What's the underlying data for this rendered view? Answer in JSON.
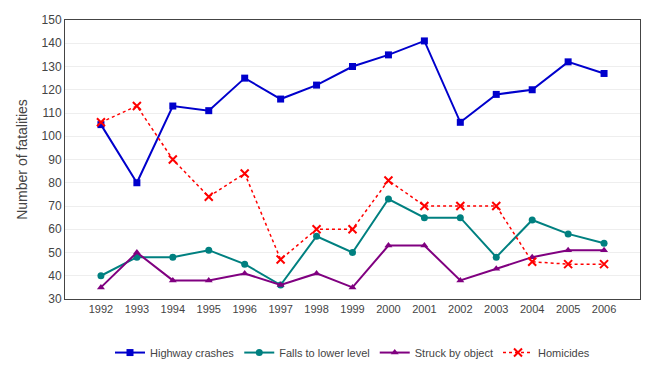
{
  "chart_data": {
    "type": "line",
    "x": [
      1992,
      1993,
      1994,
      1995,
      1996,
      1997,
      1998,
      1999,
      2000,
      2001,
      2002,
      2003,
      2004,
      2005,
      2006
    ],
    "xlim": [
      1991,
      2007
    ],
    "xticks": [
      1992,
      1993,
      1994,
      1995,
      1996,
      1997,
      1998,
      1999,
      2000,
      2001,
      2002,
      2003,
      2004,
      2005,
      2006
    ],
    "ylabel": "Number of fatalities",
    "ylim": [
      30,
      150
    ],
    "yticks": [
      30,
      40,
      50,
      60,
      70,
      80,
      90,
      100,
      110,
      120,
      130,
      140,
      150
    ],
    "grid": true,
    "legend": "bottom",
    "series": [
      {
        "name": "Highway crashes",
        "color": "#0000CC",
        "marker": "square",
        "line_style": "solid",
        "values": [
          105,
          80,
          113,
          111,
          125,
          116,
          122,
          130,
          135,
          141,
          106,
          118,
          120,
          132,
          127
        ]
      },
      {
        "name": "Falls to lower level",
        "color": "#008080",
        "marker": "circle",
        "line_style": "solid",
        "values": [
          40,
          48,
          48,
          51,
          45,
          36,
          57,
          50,
          73,
          65,
          65,
          48,
          64,
          58,
          54
        ]
      },
      {
        "name": "Struck by object",
        "color": "#800080",
        "marker": "triangle",
        "line_style": "solid",
        "values": [
          35,
          50,
          38,
          38,
          41,
          36,
          41,
          35,
          53,
          53,
          38,
          43,
          48,
          51,
          51
        ]
      },
      {
        "name": "Homicides",
        "color": "#FF0000",
        "marker": "x",
        "line_style": "dotted",
        "values": [
          106,
          113,
          90,
          74,
          84,
          47,
          60,
          60,
          81,
          70,
          70,
          70,
          46,
          45,
          45
        ]
      }
    ]
  }
}
